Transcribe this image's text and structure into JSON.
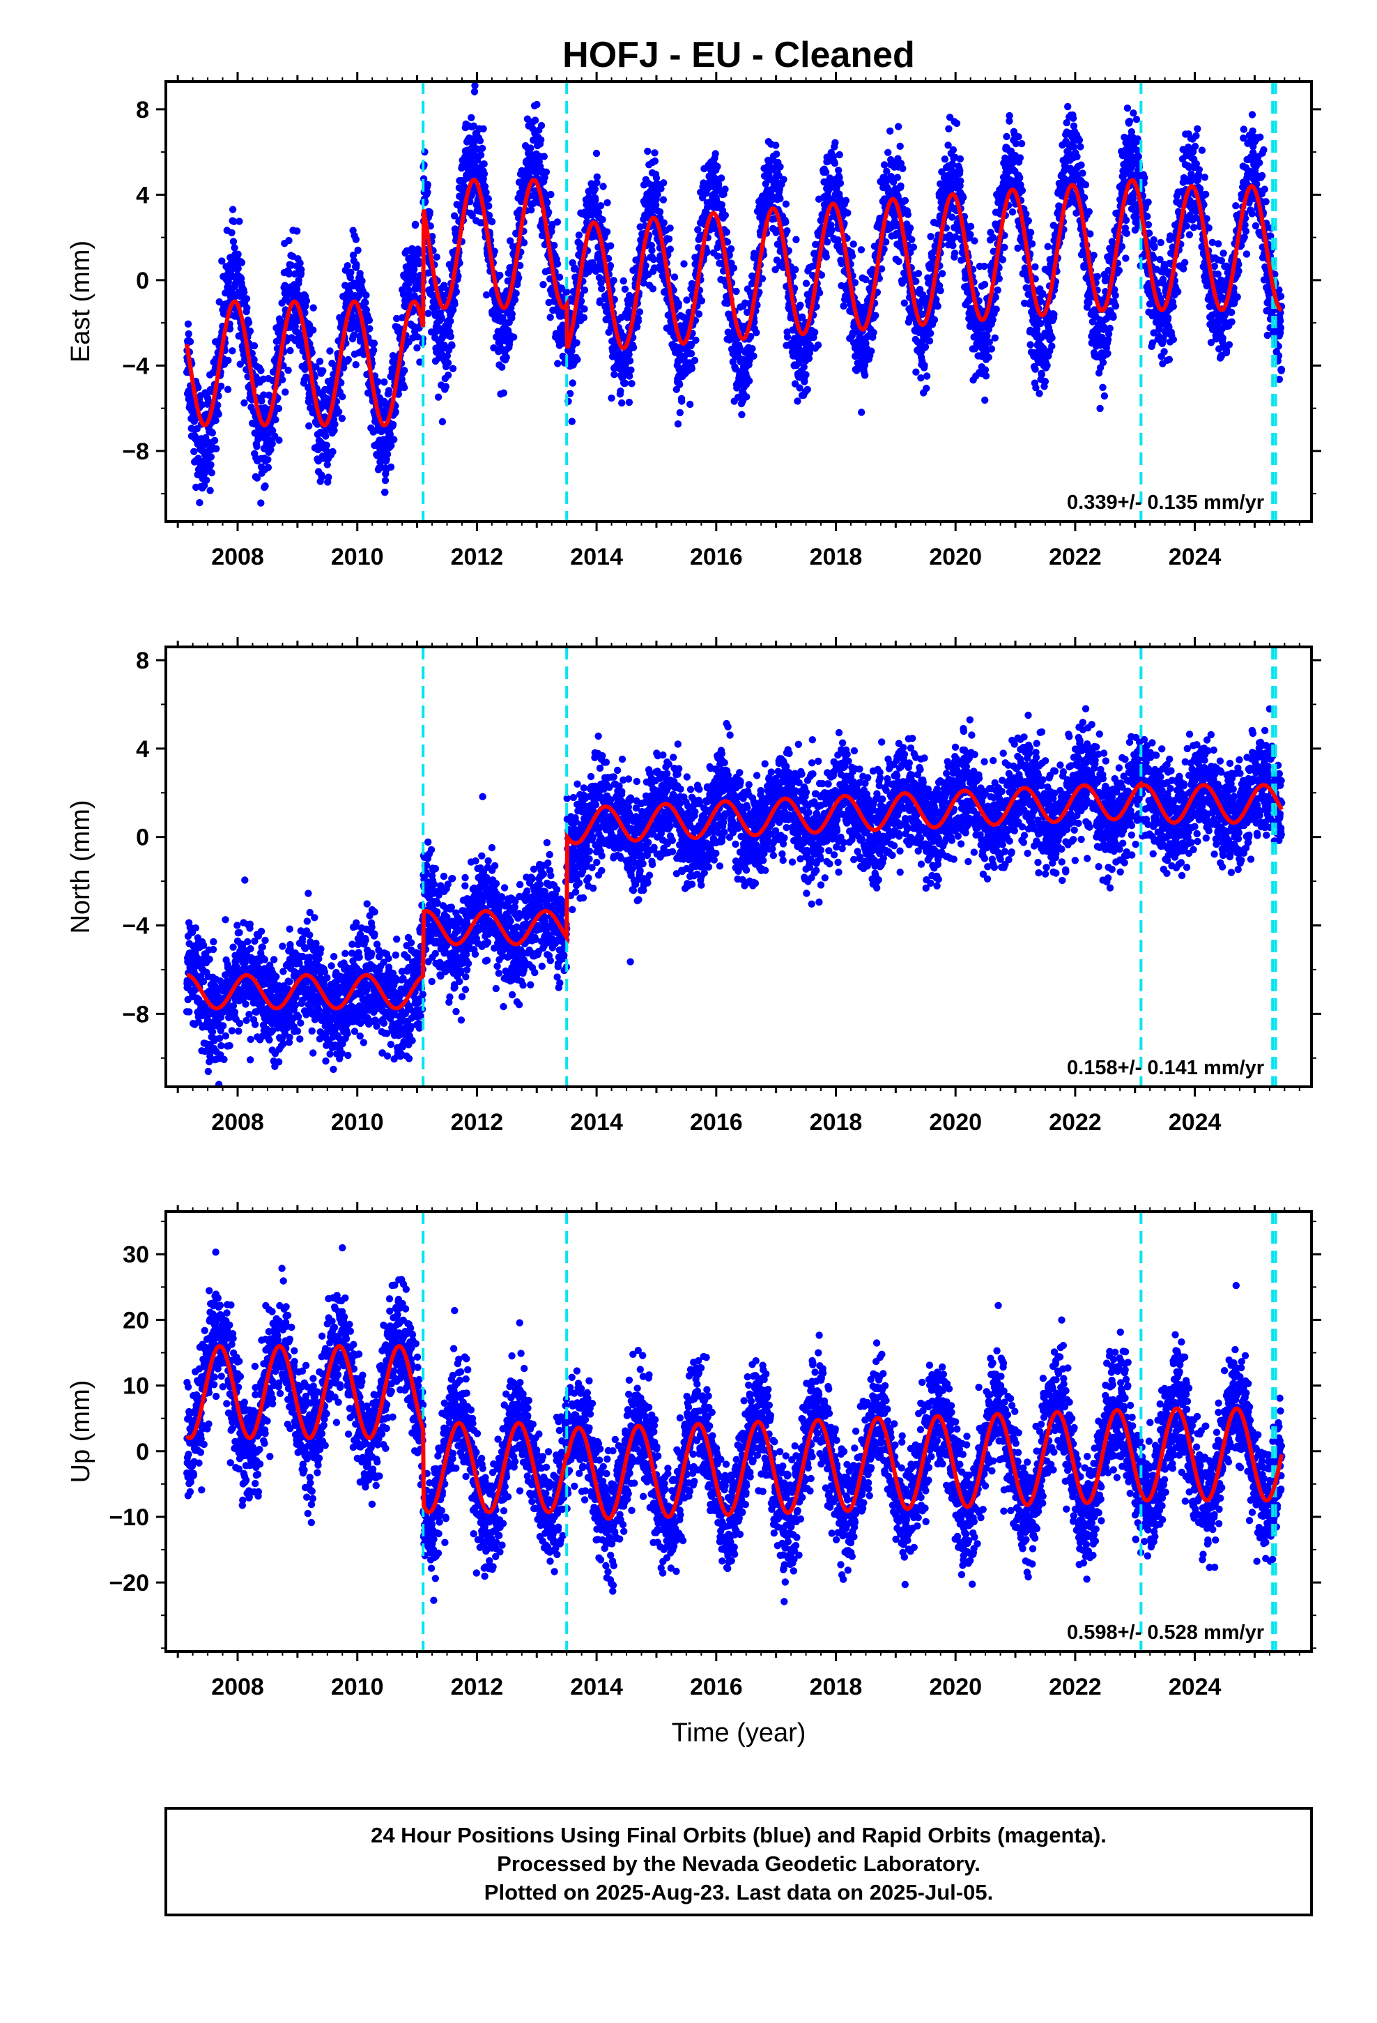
{
  "title": "HOFJ  - EU - Cleaned",
  "xlabel": "Time (year)",
  "footer": {
    "line1": "24 Hour Positions Using Final Orbits (blue) and Rapid Orbits (magenta).",
    "line2": "Processed by the Nevada Geodetic Laboratory.",
    "line3": "Plotted on 2025-Aug-23. Last data on 2025-Jul-05."
  },
  "colors": {
    "data_points": "#0000ff",
    "model_fit": "#ff0000",
    "offset_lines": "#00e5ee",
    "frame": "#000000"
  },
  "chart_data": [
    {
      "type": "scatter",
      "panel": "east",
      "ylabel": "East (mm)",
      "xlim": [
        2006.8,
        2025.95
      ],
      "ylim": [
        -11.3,
        9.3
      ],
      "yticks": [
        -8,
        -4,
        0,
        4,
        8
      ],
      "xticks": [
        2008,
        2010,
        2012,
        2014,
        2016,
        2018,
        2020,
        2022,
        2024
      ],
      "rate": "0.339+/- 0.135 mm/yr",
      "offset_epochs": [
        2011.1,
        2013.5,
        2023.1,
        2025.3,
        2025.35
      ],
      "model": {
        "start": 2007.15,
        "end": 2025.45,
        "amplitude": 2.8,
        "phase": 0.3,
        "segments": [
          {
            "from": 2007.15,
            "to": 2011.1,
            "offset": -3.9,
            "trend": 0.0,
            "amp": 2.9
          },
          {
            "from": 2011.1,
            "to": 2013.5,
            "offset": 1.7,
            "trend": 0.0,
            "amp": 3.0
          },
          {
            "from": 2013.5,
            "to": 2023.1,
            "offset": -0.4,
            "trend": 0.22,
            "amp": 3.0
          },
          {
            "from": 2023.1,
            "to": 2025.45,
            "offset": 1.5,
            "trend": 0.0,
            "amp": 2.9
          }
        ]
      },
      "points": {
        "count": 6200,
        "scatter": 1.25,
        "extra_amp": 1.3
      }
    },
    {
      "type": "scatter",
      "panel": "north",
      "ylabel": "North (mm)",
      "xlim": [
        2006.8,
        2025.95
      ],
      "ylim": [
        -11.3,
        8.6
      ],
      "yticks": [
        -8,
        -4,
        0,
        4,
        8
      ],
      "xticks": [
        2008,
        2010,
        2012,
        2014,
        2016,
        2018,
        2020,
        2022,
        2024
      ],
      "rate": "0.158+/- 0.141 mm/yr",
      "offset_epochs": [
        2011.1,
        2013.5,
        2023.1,
        2025.3,
        2025.35
      ],
      "model": {
        "start": 2007.15,
        "end": 2025.45,
        "amplitude": 0.8,
        "phase": 0.1,
        "segments": [
          {
            "from": 2007.15,
            "to": 2011.1,
            "offset": -7.0,
            "trend": 0.0,
            "amp": 0.75
          },
          {
            "from": 2011.1,
            "to": 2013.5,
            "offset": -4.1,
            "trend": 0.0,
            "amp": 0.75
          },
          {
            "from": 2013.5,
            "to": 2023.1,
            "offset": 0.5,
            "trend": 0.12,
            "amp": 0.8
          },
          {
            "from": 2023.1,
            "to": 2025.45,
            "offset": 1.5,
            "trend": 0.0,
            "amp": 0.85
          }
        ]
      },
      "points": {
        "count": 6200,
        "scatter": 1.15,
        "extra_amp": 0.3
      }
    },
    {
      "type": "scatter",
      "panel": "up",
      "ylabel": "Up (mm)",
      "xlim": [
        2006.8,
        2025.95
      ],
      "ylim": [
        -30.5,
        36.5
      ],
      "yticks": [
        -20,
        -10,
        0,
        10,
        20,
        30
      ],
      "xticks": [
        2008,
        2010,
        2012,
        2014,
        2016,
        2018,
        2020,
        2022,
        2024
      ],
      "rate": "0.598+/- 0.528 mm/yr",
      "offset_epochs": [
        2011.1,
        2013.5,
        2023.1,
        2025.3,
        2025.35
      ],
      "model": {
        "start": 2007.15,
        "end": 2025.45,
        "amplitude": 7.0,
        "phase": 0.55,
        "segments": [
          {
            "from": 2007.15,
            "to": 2011.1,
            "offset": 9.0,
            "trend": 0.0,
            "amp": 7.0
          },
          {
            "from": 2011.1,
            "to": 2013.5,
            "offset": -2.5,
            "trend": 0.0,
            "amp": 6.8
          },
          {
            "from": 2013.5,
            "to": 2023.1,
            "offset": -3.5,
            "trend": 0.3,
            "amp": 7.0
          },
          {
            "from": 2023.1,
            "to": 2025.45,
            "offset": -0.5,
            "trend": 0.0,
            "amp": 7.0
          }
        ]
      },
      "points": {
        "count": 6200,
        "scatter": 4.2,
        "extra_amp": 2.0
      }
    }
  ]
}
